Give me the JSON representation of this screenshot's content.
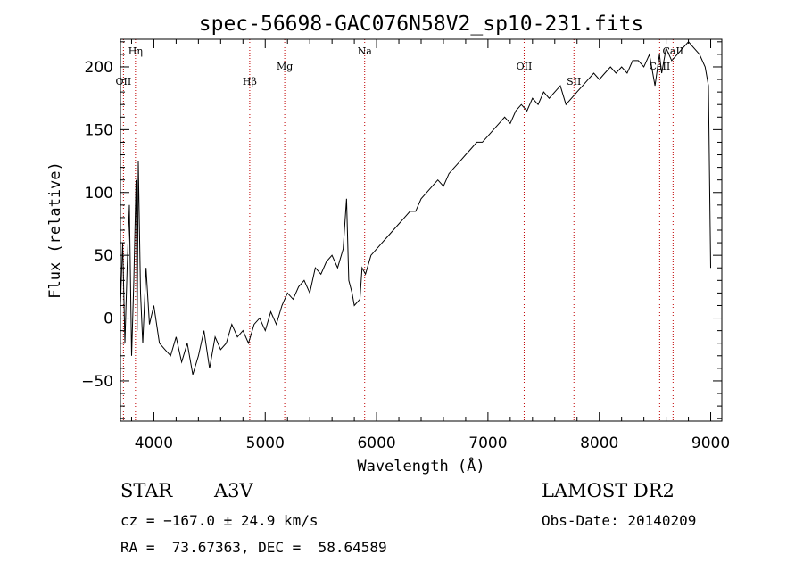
{
  "chart_data": {
    "type": "line",
    "title": "spec-56698-GAC076N58V2_sp10-231.fits",
    "xlabel": "Wavelength (Å)",
    "ylabel": "Flux (relative)",
    "xlim": [
      3700,
      9100
    ],
    "ylim": [
      -82,
      222
    ],
    "x_ticks": [
      4000,
      5000,
      6000,
      7000,
      8000,
      9000
    ],
    "y_ticks": [
      -50,
      0,
      50,
      100,
      150,
      200
    ],
    "grid": false,
    "series": [
      {
        "x": [
          3700,
          3720,
          3740,
          3760,
          3780,
          3800,
          3820,
          3840,
          3850,
          3860,
          3880,
          3900,
          3930,
          3960,
          4000,
          4050,
          4100,
          4150,
          4200,
          4250,
          4300,
          4350,
          4400,
          4450,
          4500,
          4550,
          4600,
          4650,
          4700,
          4750,
          4800,
          4850,
          4900,
          4950,
          5000,
          5050,
          5100,
          5150,
          5200,
          5250,
          5300,
          5350,
          5400,
          5450,
          5500,
          5550,
          5600,
          5650,
          5700,
          5730,
          5750,
          5780,
          5800,
          5850,
          5870,
          5900,
          5950,
          6000,
          6050,
          6100,
          6150,
          6200,
          6250,
          6300,
          6350,
          6400,
          6450,
          6500,
          6550,
          6600,
          6650,
          6700,
          6750,
          6800,
          6850,
          6900,
          6950,
          7000,
          7050,
          7100,
          7150,
          7200,
          7250,
          7300,
          7350,
          7400,
          7450,
          7500,
          7550,
          7600,
          7650,
          7700,
          7750,
          7800,
          7850,
          7900,
          7950,
          8000,
          8050,
          8100,
          8150,
          8200,
          8250,
          8300,
          8350,
          8400,
          8450,
          8500,
          8540,
          8560,
          8600,
          8650,
          8700,
          8750,
          8800,
          8850,
          8900,
          8950,
          8980,
          9000
        ],
        "y": [
          10,
          60,
          -20,
          40,
          90,
          -30,
          30,
          110,
          -10,
          125,
          20,
          -20,
          40,
          -5,
          10,
          -20,
          -25,
          -30,
          -15,
          -35,
          -20,
          -45,
          -30,
          -10,
          -40,
          -15,
          -25,
          -20,
          -5,
          -15,
          -10,
          -20,
          -5,
          0,
          -10,
          5,
          -5,
          10,
          20,
          15,
          25,
          30,
          20,
          40,
          35,
          45,
          50,
          40,
          55,
          95,
          30,
          20,
          10,
          15,
          40,
          35,
          50,
          55,
          60,
          65,
          70,
          75,
          80,
          85,
          85,
          95,
          100,
          105,
          110,
          105,
          115,
          120,
          125,
          130,
          135,
          140,
          140,
          145,
          150,
          155,
          160,
          155,
          165,
          170,
          165,
          175,
          170,
          180,
          175,
          180,
          185,
          170,
          175,
          180,
          185,
          190,
          195,
          190,
          195,
          200,
          195,
          200,
          195,
          205,
          205,
          200,
          210,
          185,
          210,
          195,
          215,
          205,
          210,
          215,
          220,
          215,
          210,
          200,
          185,
          40
        ]
      }
    ],
    "lines": [
      {
        "wavelength": 3727,
        "label": "OII",
        "tier": "low"
      },
      {
        "wavelength": 3835,
        "label": "Hη",
        "tier": "high"
      },
      {
        "wavelength": 4861,
        "label": "Hβ",
        "tier": "low"
      },
      {
        "wavelength": 5175,
        "label": "Mg",
        "tier": "mid"
      },
      {
        "wavelength": 5893,
        "label": "Na",
        "tier": "high"
      },
      {
        "wavelength": 7325,
        "label": "OII",
        "tier": "mid"
      },
      {
        "wavelength": 7772,
        "label": "SII",
        "tier": "low"
      },
      {
        "wavelength": 8542,
        "label": "CaII",
        "tier": "mid"
      },
      {
        "wavelength": 8662,
        "label": "CaII",
        "tier": "high"
      }
    ],
    "line_color": "#c00000"
  },
  "info": {
    "object_class": "STAR",
    "subclass": "A3V",
    "survey": "LAMOST DR2",
    "cz": "cz = −167.0 ± 24.9 km/s",
    "obs_date": "Obs-Date: 20140209",
    "coords": "RA =  73.67363, DEC =  58.64589"
  }
}
